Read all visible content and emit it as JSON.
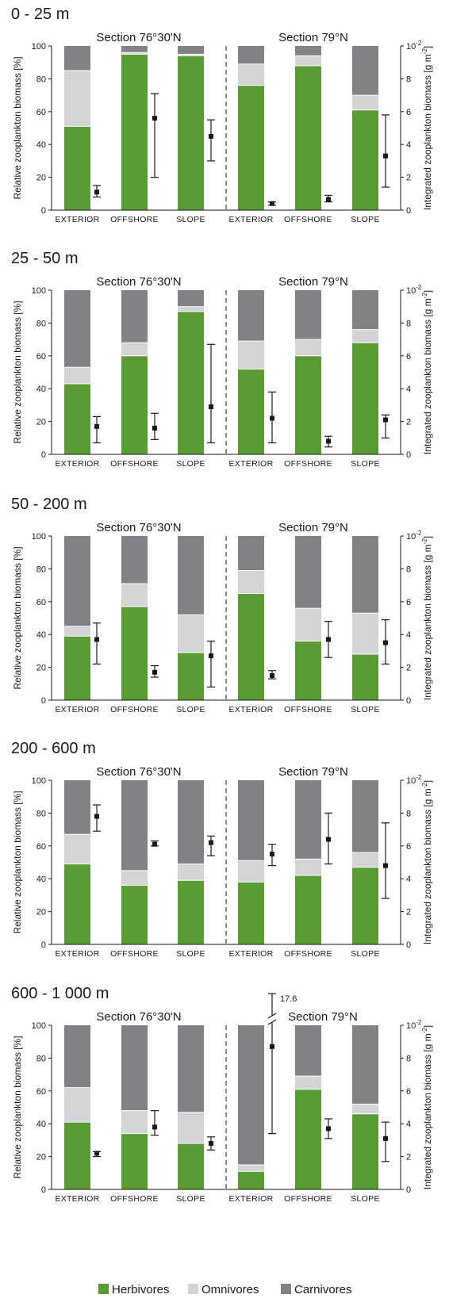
{
  "colors": {
    "herbivores": "#5b9b34",
    "omnivores": "#d3d4d6",
    "carnivores": "#808285",
    "divider_herbivores": "#ffffff"
  },
  "chart_data": {
    "type": "bar",
    "stacked": true,
    "left_axis": {
      "label": "Relative zooplankton biomass [%]",
      "ylim": [
        0,
        100
      ],
      "ticks": [
        "0",
        "20",
        "40",
        "60",
        "80",
        "100"
      ]
    },
    "right_axis": {
      "label": "Integrated zooplankton biomass [g m",
      "label_sup": "-2",
      "label_end": "]",
      "ylim": [
        0,
        10
      ],
      "ticks": [
        "0",
        "2",
        "4",
        "6",
        "8"
      ],
      "top_tick_base": "10",
      "top_tick_sup": "-2"
    },
    "legend": [
      {
        "name": "Herbivores",
        "color_key": "herbivores"
      },
      {
        "name": "Omnivores",
        "color_key": "omnivores"
      },
      {
        "name": "Carnivores",
        "color_key": "carnivores"
      }
    ],
    "legend_position": "bottom",
    "sections": [
      "Section 76°30'N",
      "Section 79°N"
    ],
    "categories": [
      "EXTERIOR",
      "OFFSHORE",
      "SLOPE",
      "EXTERIOR",
      "OFFSHORE",
      "SLOPE"
    ],
    "panels": [
      {
        "title": "0 - 25 m",
        "herbivores": [
          51,
          95,
          94,
          76,
          88,
          61
        ],
        "omnivores": [
          34,
          1,
          1,
          13,
          6,
          9
        ],
        "carnivores": [
          15,
          4,
          5,
          11,
          6,
          30
        ],
        "biomass_mean": [
          1.1,
          5.6,
          4.5,
          0.4,
          0.65,
          3.3
        ],
        "biomass_low": [
          0.8,
          2.0,
          3.0,
          0.3,
          0.5,
          1.4
        ],
        "biomass_high": [
          1.5,
          7.1,
          5.5,
          0.5,
          0.9,
          5.8
        ]
      },
      {
        "title": "25 - 50 m",
        "herbivores": [
          43,
          60,
          87,
          52,
          60,
          68
        ],
        "omnivores": [
          10,
          8,
          3,
          17,
          10,
          8
        ],
        "carnivores": [
          47,
          32,
          10,
          31,
          30,
          24
        ],
        "biomass_mean": [
          1.7,
          1.6,
          2.9,
          2.2,
          0.8,
          2.1
        ],
        "biomass_low": [
          0.7,
          0.9,
          0.7,
          0.7,
          0.45,
          1.0
        ],
        "biomass_high": [
          2.3,
          2.5,
          6.7,
          3.8,
          1.1,
          2.4
        ]
      },
      {
        "title": "50 - 200 m",
        "herbivores": [
          39,
          57,
          29,
          65,
          36,
          28
        ],
        "omnivores": [
          6,
          14,
          23,
          14,
          20,
          25
        ],
        "carnivores": [
          55,
          29,
          48,
          21,
          44,
          47
        ],
        "biomass_mean": [
          3.7,
          1.7,
          2.7,
          1.5,
          3.7,
          3.5
        ],
        "biomass_low": [
          2.2,
          1.4,
          0.8,
          1.3,
          2.6,
          2.2
        ],
        "biomass_high": [
          4.7,
          2.1,
          3.6,
          1.8,
          4.8,
          4.9
        ]
      },
      {
        "title": "200 - 600 m",
        "herbivores": [
          49,
          36,
          39,
          38,
          42,
          47
        ],
        "omnivores": [
          18,
          9,
          10,
          13,
          10,
          9
        ],
        "carnivores": [
          33,
          55,
          51,
          49,
          48,
          44
        ],
        "biomass_mean": [
          7.8,
          6.1,
          6.2,
          5.5,
          6.4,
          4.8
        ],
        "biomass_low": [
          6.9,
          6.0,
          5.4,
          4.8,
          4.9,
          2.8
        ],
        "biomass_high": [
          8.5,
          6.3,
          6.6,
          6.1,
          8.0,
          7.4
        ]
      },
      {
        "title": "600 - 1 000 m",
        "herbivores": [
          41,
          34,
          28,
          11,
          61,
          46
        ],
        "omnivores": [
          21,
          14,
          19,
          4,
          8,
          6
        ],
        "carnivores": [
          38,
          52,
          53,
          85,
          31,
          48
        ],
        "biomass_mean": [
          2.2,
          3.8,
          2.8,
          8.7,
          3.7,
          3.1
        ],
        "biomass_low": [
          2.0,
          3.3,
          2.4,
          3.4,
          3.1,
          1.7
        ],
        "biomass_high": [
          2.3,
          4.8,
          3.2,
          17.6,
          4.3,
          4.1
        ],
        "broken_axis_label": "17.6"
      }
    ]
  }
}
